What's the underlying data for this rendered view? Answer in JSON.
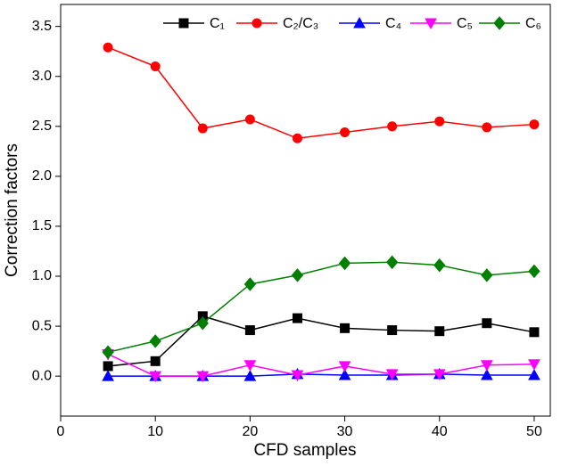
{
  "chart_data": {
    "type": "line",
    "x_label": "CFD samples",
    "y_label": "Correction factors",
    "x": [
      5,
      10,
      15,
      20,
      25,
      30,
      35,
      40,
      45,
      50
    ],
    "series": [
      {
        "name": "C₁",
        "color": "#000000",
        "marker": "square",
        "values": [
          0.1,
          0.15,
          0.6,
          0.46,
          0.58,
          0.48,
          0.46,
          0.45,
          0.53,
          0.44
        ]
      },
      {
        "name": "C₂/C₃",
        "color": "#ff0000",
        "marker": "circle",
        "values": [
          3.29,
          3.1,
          2.48,
          2.57,
          2.38,
          2.44,
          2.5,
          2.55,
          2.49,
          2.52
        ]
      },
      {
        "name": "C₄",
        "color": "#0000ff",
        "marker": "triangle-up",
        "values": [
          0,
          0,
          0,
          0,
          0.02,
          0.01,
          0.01,
          0.02,
          0.01,
          0.01
        ]
      },
      {
        "name": "C₅",
        "color": "#ff00ff",
        "marker": "triangle-down",
        "values": [
          0.22,
          0,
          0,
          0.11,
          0.01,
          0.1,
          0.02,
          0.02,
          0.11,
          0.12
        ]
      },
      {
        "name": "C₆",
        "color": "#008000",
        "marker": "diamond",
        "values": [
          0.24,
          0.35,
          0.53,
          0.92,
          1.01,
          1.13,
          1.14,
          1.11,
          1.01,
          1.05
        ]
      }
    ],
    "xlim": [
      0,
      51.7
    ],
    "ylim": [
      -0.4,
      3.72
    ],
    "xticks": [
      0,
      10,
      20,
      30,
      40,
      50
    ],
    "yticks": [
      {
        "value": 0,
        "label": "0.0"
      },
      {
        "value": 0.5,
        "label": "0.5"
      },
      {
        "value": 1,
        "label": "1.0"
      },
      {
        "value": 1.5,
        "label": "1.5"
      },
      {
        "value": 2,
        "label": "2.0"
      },
      {
        "value": 2.5,
        "label": "2.5"
      },
      {
        "value": 3,
        "label": "3.0"
      },
      {
        "value": 3.5,
        "label": "3.5"
      }
    ],
    "legend": "top-right",
    "grid": false
  }
}
